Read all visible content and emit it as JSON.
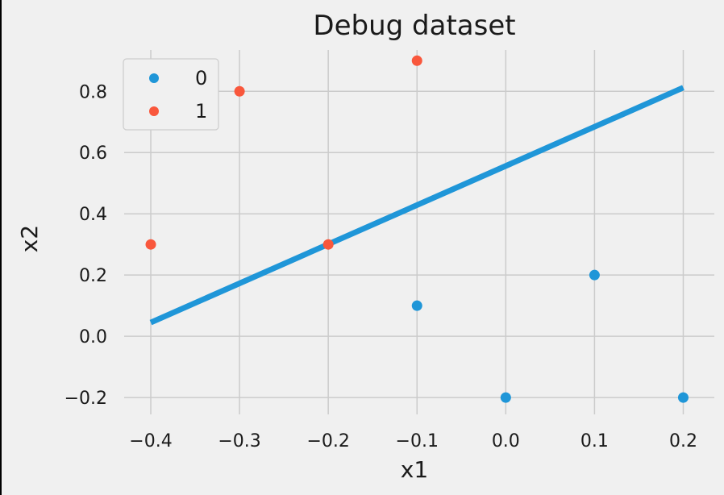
{
  "chart_data": {
    "type": "scatter",
    "title": "Debug dataset",
    "xlabel": "x1",
    "ylabel": "x2",
    "xlim": [
      -0.43,
      0.235
    ],
    "ylim": [
      -0.255,
      0.935
    ],
    "xticks": [
      -0.4,
      -0.3,
      -0.2,
      -0.1,
      0.0,
      0.1,
      0.2
    ],
    "xtick_labels": [
      "−0.4",
      "−0.3",
      "−0.2",
      "−0.1",
      "0.0",
      "0.1",
      "0.2"
    ],
    "yticks": [
      -0.2,
      0.0,
      0.2,
      0.4,
      0.6,
      0.8
    ],
    "ytick_labels": [
      "−0.2",
      "0.0",
      "0.2",
      "0.4",
      "0.6",
      "0.8"
    ],
    "grid": true,
    "legend": {
      "placement": "top-left"
    },
    "series": [
      {
        "name": "0",
        "color": "#1f96d8",
        "points": [
          [
            -0.1,
            0.1
          ],
          [
            0.0,
            -0.2
          ],
          [
            0.1,
            0.2
          ],
          [
            0.2,
            -0.2
          ]
        ]
      },
      {
        "name": "1",
        "color": "#f9573c",
        "points": [
          [
            -0.4,
            0.3
          ],
          [
            -0.3,
            0.8
          ],
          [
            -0.2,
            0.3
          ],
          [
            -0.1,
            0.9
          ]
        ]
      }
    ],
    "line": {
      "color": "#1f96d8",
      "points": [
        [
          -0.4,
          0.045
        ],
        [
          0.2,
          0.812
        ]
      ]
    }
  }
}
